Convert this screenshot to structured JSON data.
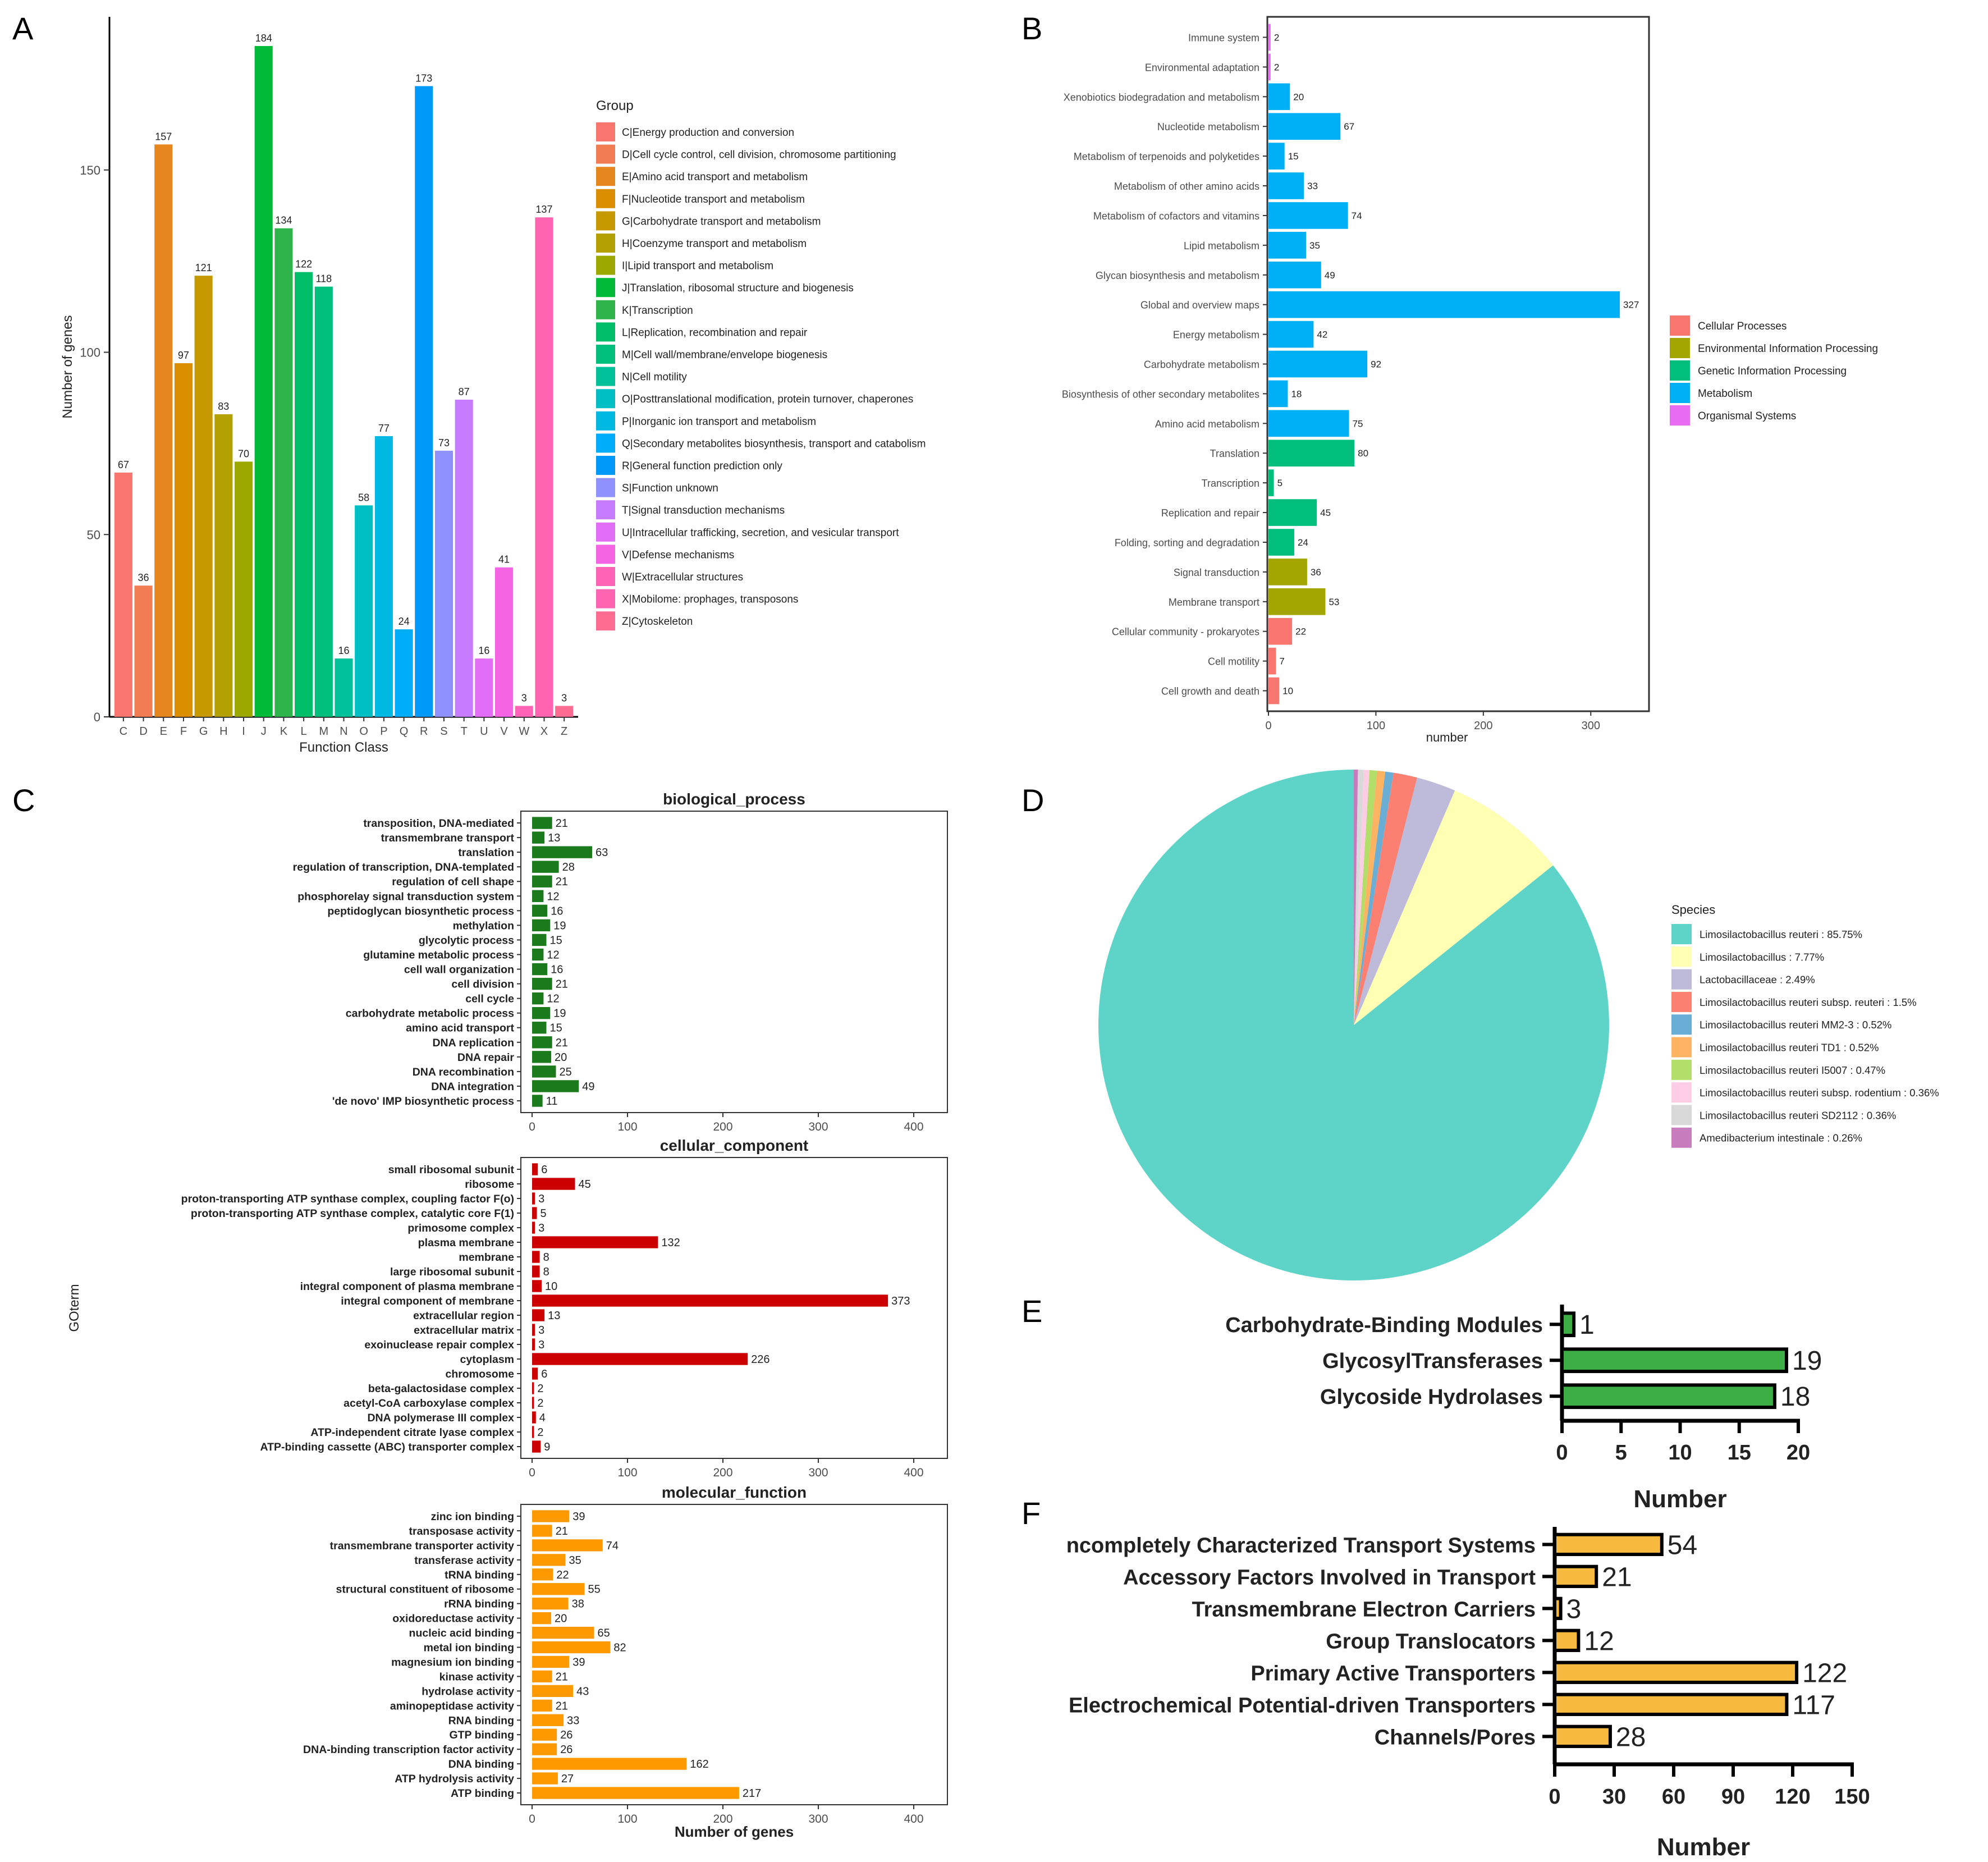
{
  "panels": {
    "A": "A",
    "B": "B",
    "C": "C",
    "D": "D",
    "E": "E",
    "F": "F"
  },
  "chart_data": [
    {
      "id": "A",
      "type": "bar",
      "title": "",
      "xlabel": "Function Class",
      "ylabel": "Number of genes",
      "ylim": [
        0,
        192
      ],
      "yticks": [
        0,
        50,
        100,
        150
      ],
      "categories": [
        "C",
        "D",
        "E",
        "F",
        "G",
        "H",
        "I",
        "J",
        "K",
        "L",
        "M",
        "N",
        "O",
        "P",
        "Q",
        "R",
        "S",
        "T",
        "U",
        "V",
        "W",
        "X",
        "Z"
      ],
      "values": [
        67,
        36,
        157,
        97,
        121,
        83,
        70,
        184,
        134,
        122,
        118,
        16,
        58,
        77,
        24,
        173,
        73,
        87,
        16,
        41,
        3,
        137,
        3
      ],
      "colors": [
        "#F8766D",
        "#F27D53",
        "#E6861E",
        "#DB8E00",
        "#C69900",
        "#B2A100",
        "#9AA800",
        "#00BA38",
        "#2FB34B",
        "#00BE67",
        "#00BF7D",
        "#00C19A",
        "#00BFC4",
        "#00B9E3",
        "#00ADFA",
        "#0099F8",
        "#8F91FF",
        "#C77CFF",
        "#E26EF7",
        "#F564E3",
        "#FF63B6",
        "#FF64B0",
        "#FF6C91"
      ],
      "legend_title": "Group",
      "legend": [
        "C|Energy production and conversion",
        "D|Cell cycle control, cell division, chromosome partitioning",
        "E|Amino acid transport and metabolism",
        "F|Nucleotide transport and metabolism",
        "G|Carbohydrate transport and metabolism",
        "H|Coenzyme transport and metabolism",
        "I|Lipid transport and metabolism",
        "J|Translation, ribosomal structure and biogenesis",
        "K|Transcription",
        "L|Replication, recombination and repair",
        "M|Cell wall/membrane/envelope biogenesis",
        "N|Cell motility",
        "O|Posttranslational modification, protein turnover, chaperones",
        "P|Inorganic ion transport and metabolism",
        "Q|Secondary metabolites biosynthesis, transport and catabolism",
        "R|General function prediction only",
        "S|Function unknown",
        "T|Signal transduction mechanisms",
        "U|Intracellular trafficking, secretion, and vesicular transport",
        "V|Defense mechanisms",
        "W|Extracellular structures",
        "X|Mobilome: prophages, transposons",
        "Z|Cytoskeleton"
      ]
    },
    {
      "id": "B",
      "type": "bar",
      "orientation": "horizontal",
      "xlabel": "number",
      "xlim": [
        0,
        350
      ],
      "xticks": [
        0,
        100,
        200,
        300
      ],
      "categories": [
        "Immune system",
        "Environmental adaptation",
        "Xenobiotics biodegradation and metabolism",
        "Nucleotide metabolism",
        "Metabolism of terpenoids and polyketides",
        "Metabolism of other amino acids",
        "Metabolism of cofactors and vitamins",
        "Lipid metabolism",
        "Glycan biosynthesis and metabolism",
        "Global and overview maps",
        "Energy metabolism",
        "Carbohydrate metabolism",
        "Biosynthesis of other secondary metabolites",
        "Amino acid metabolism",
        "Translation",
        "Transcription",
        "Replication and repair",
        "Folding, sorting and degradation",
        "Signal transduction",
        "Membrane transport",
        "Cellular community - prokaryotes",
        "Cell motility",
        "Cell growth and death"
      ],
      "values": [
        2,
        2,
        20,
        67,
        15,
        33,
        74,
        35,
        49,
        327,
        42,
        92,
        18,
        75,
        80,
        5,
        45,
        24,
        36,
        53,
        22,
        7,
        10
      ],
      "groups": [
        "Organismal Systems",
        "Organismal Systems",
        "Metabolism",
        "Metabolism",
        "Metabolism",
        "Metabolism",
        "Metabolism",
        "Metabolism",
        "Metabolism",
        "Metabolism",
        "Metabolism",
        "Metabolism",
        "Metabolism",
        "Metabolism",
        "Genetic Information Processing",
        "Genetic Information Processing",
        "Genetic Information Processing",
        "Genetic Information Processing",
        "Environmental Information Processing",
        "Environmental Information Processing",
        "Cellular Processes",
        "Cellular Processes",
        "Cellular Processes"
      ],
      "legend": [
        {
          "name": "Cellular Processes",
          "color": "#F8766D"
        },
        {
          "name": "Environmental Information Processing",
          "color": "#A3A500"
        },
        {
          "name": "Genetic Information Processing",
          "color": "#00BF7D"
        },
        {
          "name": "Metabolism",
          "color": "#00B0F6"
        },
        {
          "name": "Organismal Systems",
          "color": "#E76BF3"
        }
      ]
    },
    {
      "id": "C",
      "type": "bar",
      "orientation": "horizontal",
      "ylabel": "GOterm",
      "xlabel": "Number of genes",
      "xlim": [
        0,
        420
      ],
      "xticks": [
        0,
        100,
        200,
        300,
        400
      ],
      "facets": [
        {
          "title": "biological_process",
          "color": "#1B7A1B",
          "categories": [
            "transposition, DNA-mediated",
            "transmembrane transport",
            "translation",
            "regulation of transcription, DNA-templated",
            "regulation of cell shape",
            "phosphorelay signal transduction system",
            "peptidoglycan biosynthetic process",
            "methylation",
            "glycolytic process",
            "glutamine metabolic process",
            "cell wall organization",
            "cell division",
            "cell cycle",
            "carbohydrate metabolic process",
            "amino acid transport",
            "DNA replication",
            "DNA repair",
            "DNA recombination",
            "DNA integration",
            "'de novo' IMP biosynthetic process"
          ],
          "values": [
            21,
            13,
            63,
            28,
            21,
            12,
            16,
            19,
            15,
            12,
            16,
            21,
            12,
            19,
            15,
            21,
            20,
            25,
            49,
            11
          ]
        },
        {
          "title": "cellular_component",
          "color": "#CC0000",
          "categories": [
            "small ribosomal subunit",
            "ribosome",
            "proton-transporting ATP synthase complex, coupling factor F(o)",
            "proton-transporting ATP synthase complex, catalytic core F(1)",
            "primosome complex",
            "plasma membrane",
            "membrane",
            "large ribosomal subunit",
            "integral component of plasma membrane",
            "integral component of membrane",
            "extracellular region",
            "extracellular matrix",
            "exoinuclease repair complex",
            "cytoplasm",
            "chromosome",
            "beta-galactosidase complex",
            "acetyl-CoA carboxylase complex",
            "DNA polymerase III complex",
            "ATP-independent citrate lyase complex",
            "ATP-binding cassette (ABC) transporter complex"
          ],
          "values": [
            6,
            45,
            3,
            5,
            3,
            132,
            8,
            8,
            10,
            373,
            13,
            3,
            3,
            226,
            6,
            2,
            2,
            4,
            2,
            9
          ]
        },
        {
          "title": "molecular_function",
          "color": "#FF9900",
          "categories": [
            "zinc ion binding",
            "transposase activity",
            "transmembrane transporter activity",
            "transferase activity",
            "tRNA binding",
            "structural constituent of ribosome",
            "rRNA binding",
            "oxidoreductase activity",
            "nucleic acid binding",
            "metal ion binding",
            "magnesium ion binding",
            "kinase activity",
            "hydrolase activity",
            "aminopeptidase activity",
            "RNA binding",
            "GTP binding",
            "DNA-binding transcription factor activity",
            "DNA binding",
            "ATP hydrolysis activity",
            "ATP binding"
          ],
          "values": [
            39,
            21,
            74,
            35,
            22,
            55,
            38,
            20,
            65,
            82,
            39,
            21,
            43,
            21,
            33,
            26,
            26,
            162,
            27,
            217
          ]
        }
      ]
    },
    {
      "id": "D",
      "type": "pie",
      "legend_title": "Species",
      "slices": [
        {
          "label": "Limosilactobacillus reuteri : 85.75%",
          "value": 85.75,
          "color": "#5ED4C8"
        },
        {
          "label": "Limosilactobacillus : 7.77%",
          "value": 7.77,
          "color": "#FFFFB3"
        },
        {
          "label": "Lactobacillaceae : 2.49%",
          "value": 2.49,
          "color": "#BEBADA"
        },
        {
          "label": "Limosilactobacillus reuteri subsp. reuteri : 1.5%",
          "value": 1.5,
          "color": "#FB8072"
        },
        {
          "label": "Limosilactobacillus reuteri MM2-3 : 0.52%",
          "value": 0.52,
          "color": "#6AAED6"
        },
        {
          "label": "Limosilactobacillus reuteri TD1 : 0.52%",
          "value": 0.52,
          "color": "#FDB462"
        },
        {
          "label": "Limosilactobacillus reuteri I5007 : 0.47%",
          "value": 0.47,
          "color": "#B3DE69"
        },
        {
          "label": "Limosilactobacillus reuteri subsp. rodentium : 0.36%",
          "value": 0.36,
          "color": "#FCCDE5"
        },
        {
          "label": "Limosilactobacillus reuteri SD2112 : 0.36%",
          "value": 0.36,
          "color": "#D9D9D9"
        },
        {
          "label": "Amedibacterium intestinale : 0.26%",
          "value": 0.26,
          "color": "#C77CBE"
        }
      ]
    },
    {
      "id": "E",
      "type": "bar",
      "orientation": "horizontal",
      "xlabel": "Number",
      "xlim": [
        0,
        20
      ],
      "xticks": [
        0,
        5,
        10,
        15,
        20
      ],
      "color": "#3DAE46",
      "categories": [
        "Carbohydrate-Binding Modules",
        "GlycosylTransferases",
        "Glycoside Hydrolases"
      ],
      "values": [
        1,
        19,
        18
      ]
    },
    {
      "id": "F",
      "type": "bar",
      "orientation": "horizontal",
      "xlabel": "Number",
      "xlim": [
        0,
        150
      ],
      "xticks": [
        0,
        30,
        60,
        90,
        120,
        150
      ],
      "color": "#F7BA3E",
      "categories": [
        "ncompletely Characterized Transport Systems",
        "Accessory Factors Involved in Transport",
        "Transmembrane Electron Carriers",
        "Group Translocators",
        "Primary Active Transporters",
        "Electrochemical Potential-driven Transporters",
        "Channels/Pores"
      ],
      "values": [
        54,
        21,
        3,
        12,
        122,
        117,
        28
      ]
    }
  ]
}
